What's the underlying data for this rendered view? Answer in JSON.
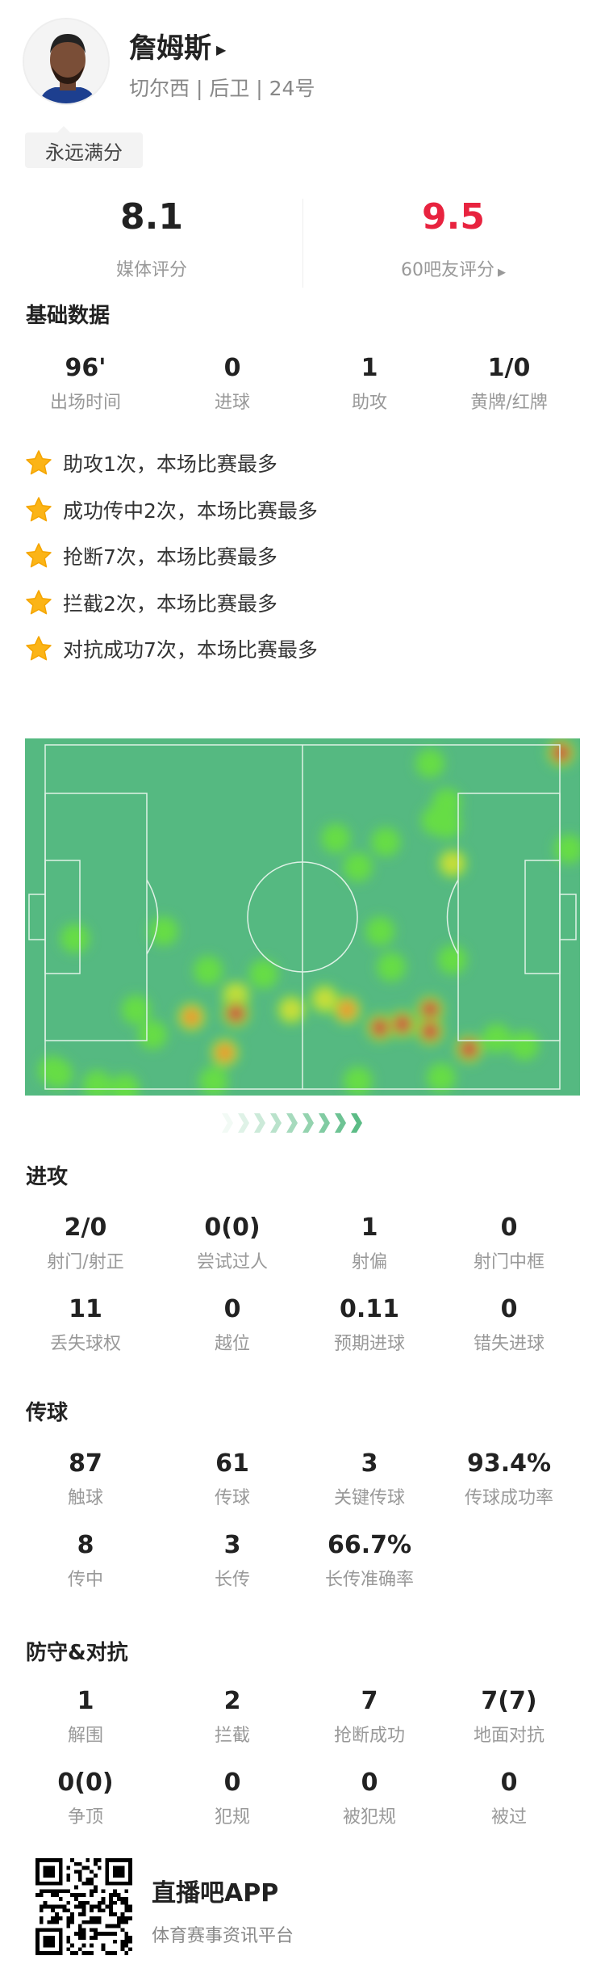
{
  "player": {
    "name": "詹姆斯",
    "subtitle": "切尔西 | 后卫 | 24号",
    "tag": "永远满分"
  },
  "ratings": {
    "media": {
      "value": "8.1",
      "label": "媒体评分"
    },
    "fans": {
      "value": "9.5",
      "label": "60吧友评分",
      "color": "#e8233f"
    }
  },
  "basic": {
    "title": "基础数据",
    "stats": [
      {
        "value": "96'",
        "label": "出场时间"
      },
      {
        "value": "0",
        "label": "进球"
      },
      {
        "value": "1",
        "label": "助攻"
      },
      {
        "value": "1/0",
        "label": "黄牌/红牌"
      }
    ]
  },
  "highlights": [
    "助攻1次，本场比赛最多",
    "成功传中2次，本场比赛最多",
    "抢断7次，本场比赛最多",
    "拦截2次，本场比赛最多",
    "对抗成功7次，本场比赛最多"
  ],
  "heatmap": {
    "pitch_color": "#55b981",
    "attack_direction": "right"
  },
  "attack": {
    "title": "进攻",
    "stats": [
      {
        "value": "2/0",
        "label": "射门/射正"
      },
      {
        "value": "0(0)",
        "label": "尝试过人"
      },
      {
        "value": "1",
        "label": "射偏"
      },
      {
        "value": "0",
        "label": "射门中框"
      },
      {
        "value": "11",
        "label": "丢失球权"
      },
      {
        "value": "0",
        "label": "越位"
      },
      {
        "value": "0.11",
        "label": "预期进球"
      },
      {
        "value": "0",
        "label": "错失进球"
      }
    ]
  },
  "passing": {
    "title": "传球",
    "stats": [
      {
        "value": "87",
        "label": "触球"
      },
      {
        "value": "61",
        "label": "传球"
      },
      {
        "value": "3",
        "label": "关键传球"
      },
      {
        "value": "93.4%",
        "label": "传球成功率"
      },
      {
        "value": "8",
        "label": "传中"
      },
      {
        "value": "3",
        "label": "长传"
      },
      {
        "value": "66.7%",
        "label": "长传准确率"
      }
    ]
  },
  "defense": {
    "title": "防守&对抗",
    "stats": [
      {
        "value": "1",
        "label": "解围"
      },
      {
        "value": "2",
        "label": "拦截"
      },
      {
        "value": "7",
        "label": "抢断成功"
      },
      {
        "value": "7(7)",
        "label": "地面对抗"
      },
      {
        "value": "0(0)",
        "label": "争顶"
      },
      {
        "value": "0",
        "label": "犯规"
      },
      {
        "value": "0",
        "label": "被犯规"
      },
      {
        "value": "0",
        "label": "被过"
      }
    ]
  },
  "footer": {
    "app": "直播吧APP",
    "slogan": "体育赛事资讯平台"
  }
}
